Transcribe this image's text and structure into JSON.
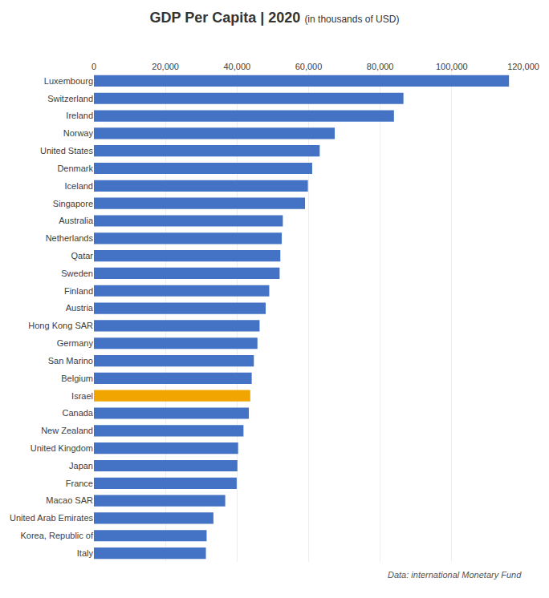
{
  "chart_data": {
    "type": "bar",
    "orientation": "horizontal",
    "title": "GDP Per Capita | 2020",
    "subtitle": "(in thousands of USD)",
    "annotations": [
      "Data: international Monetary Fund"
    ],
    "categories": [
      "Luxembourg",
      "Switzerland",
      "Ireland",
      "Norway",
      "United States",
      "Denmark",
      "Iceland",
      "Singapore",
      "Australia",
      "Netherlands",
      "Qatar",
      "Sweden",
      "Finland",
      "Austria",
      "Hong Kong SAR",
      "Germany",
      "San Marino",
      "Belgium",
      "Israel",
      "Canada",
      "New Zealand",
      "United Kingdom",
      "Japan",
      "France",
      "Macao SAR",
      "United Arab Emirates",
      "Korea, Republic of",
      "Italy"
    ],
    "values": [
      116000,
      86500,
      83850,
      67300,
      63100,
      61000,
      59800,
      59000,
      52800,
      52500,
      52100,
      51900,
      49000,
      48000,
      46300,
      45700,
      44700,
      44100,
      43700,
      43300,
      41800,
      40300,
      40100,
      39900,
      36700,
      33400,
      31500,
      31300
    ],
    "colors": [
      "#4472C4",
      "#4472C4",
      "#4472C4",
      "#4472C4",
      "#4472C4",
      "#4472C4",
      "#4472C4",
      "#4472C4",
      "#4472C4",
      "#4472C4",
      "#4472C4",
      "#4472C4",
      "#4472C4",
      "#4472C4",
      "#4472C4",
      "#4472C4",
      "#4472C4",
      "#4472C4",
      "#F0A500",
      "#4472C4",
      "#4472C4",
      "#4472C4",
      "#4472C4",
      "#4472C4",
      "#4472C4",
      "#4472C4",
      "#4472C4",
      "#4472C4"
    ],
    "xlim": [
      0,
      120000
    ],
    "xticks": [
      0,
      {
        "value": 20000,
        "label": "20,000"
      },
      {
        "value": 40000,
        "label": "40,000"
      },
      {
        "value": 60000,
        "label": "60,000"
      },
      {
        "value": 80000,
        "label": "80,000"
      },
      {
        "value": 100000,
        "label": "100,000"
      },
      {
        "value": 120000,
        "label": "120,000"
      }
    ],
    "grid": true
  }
}
